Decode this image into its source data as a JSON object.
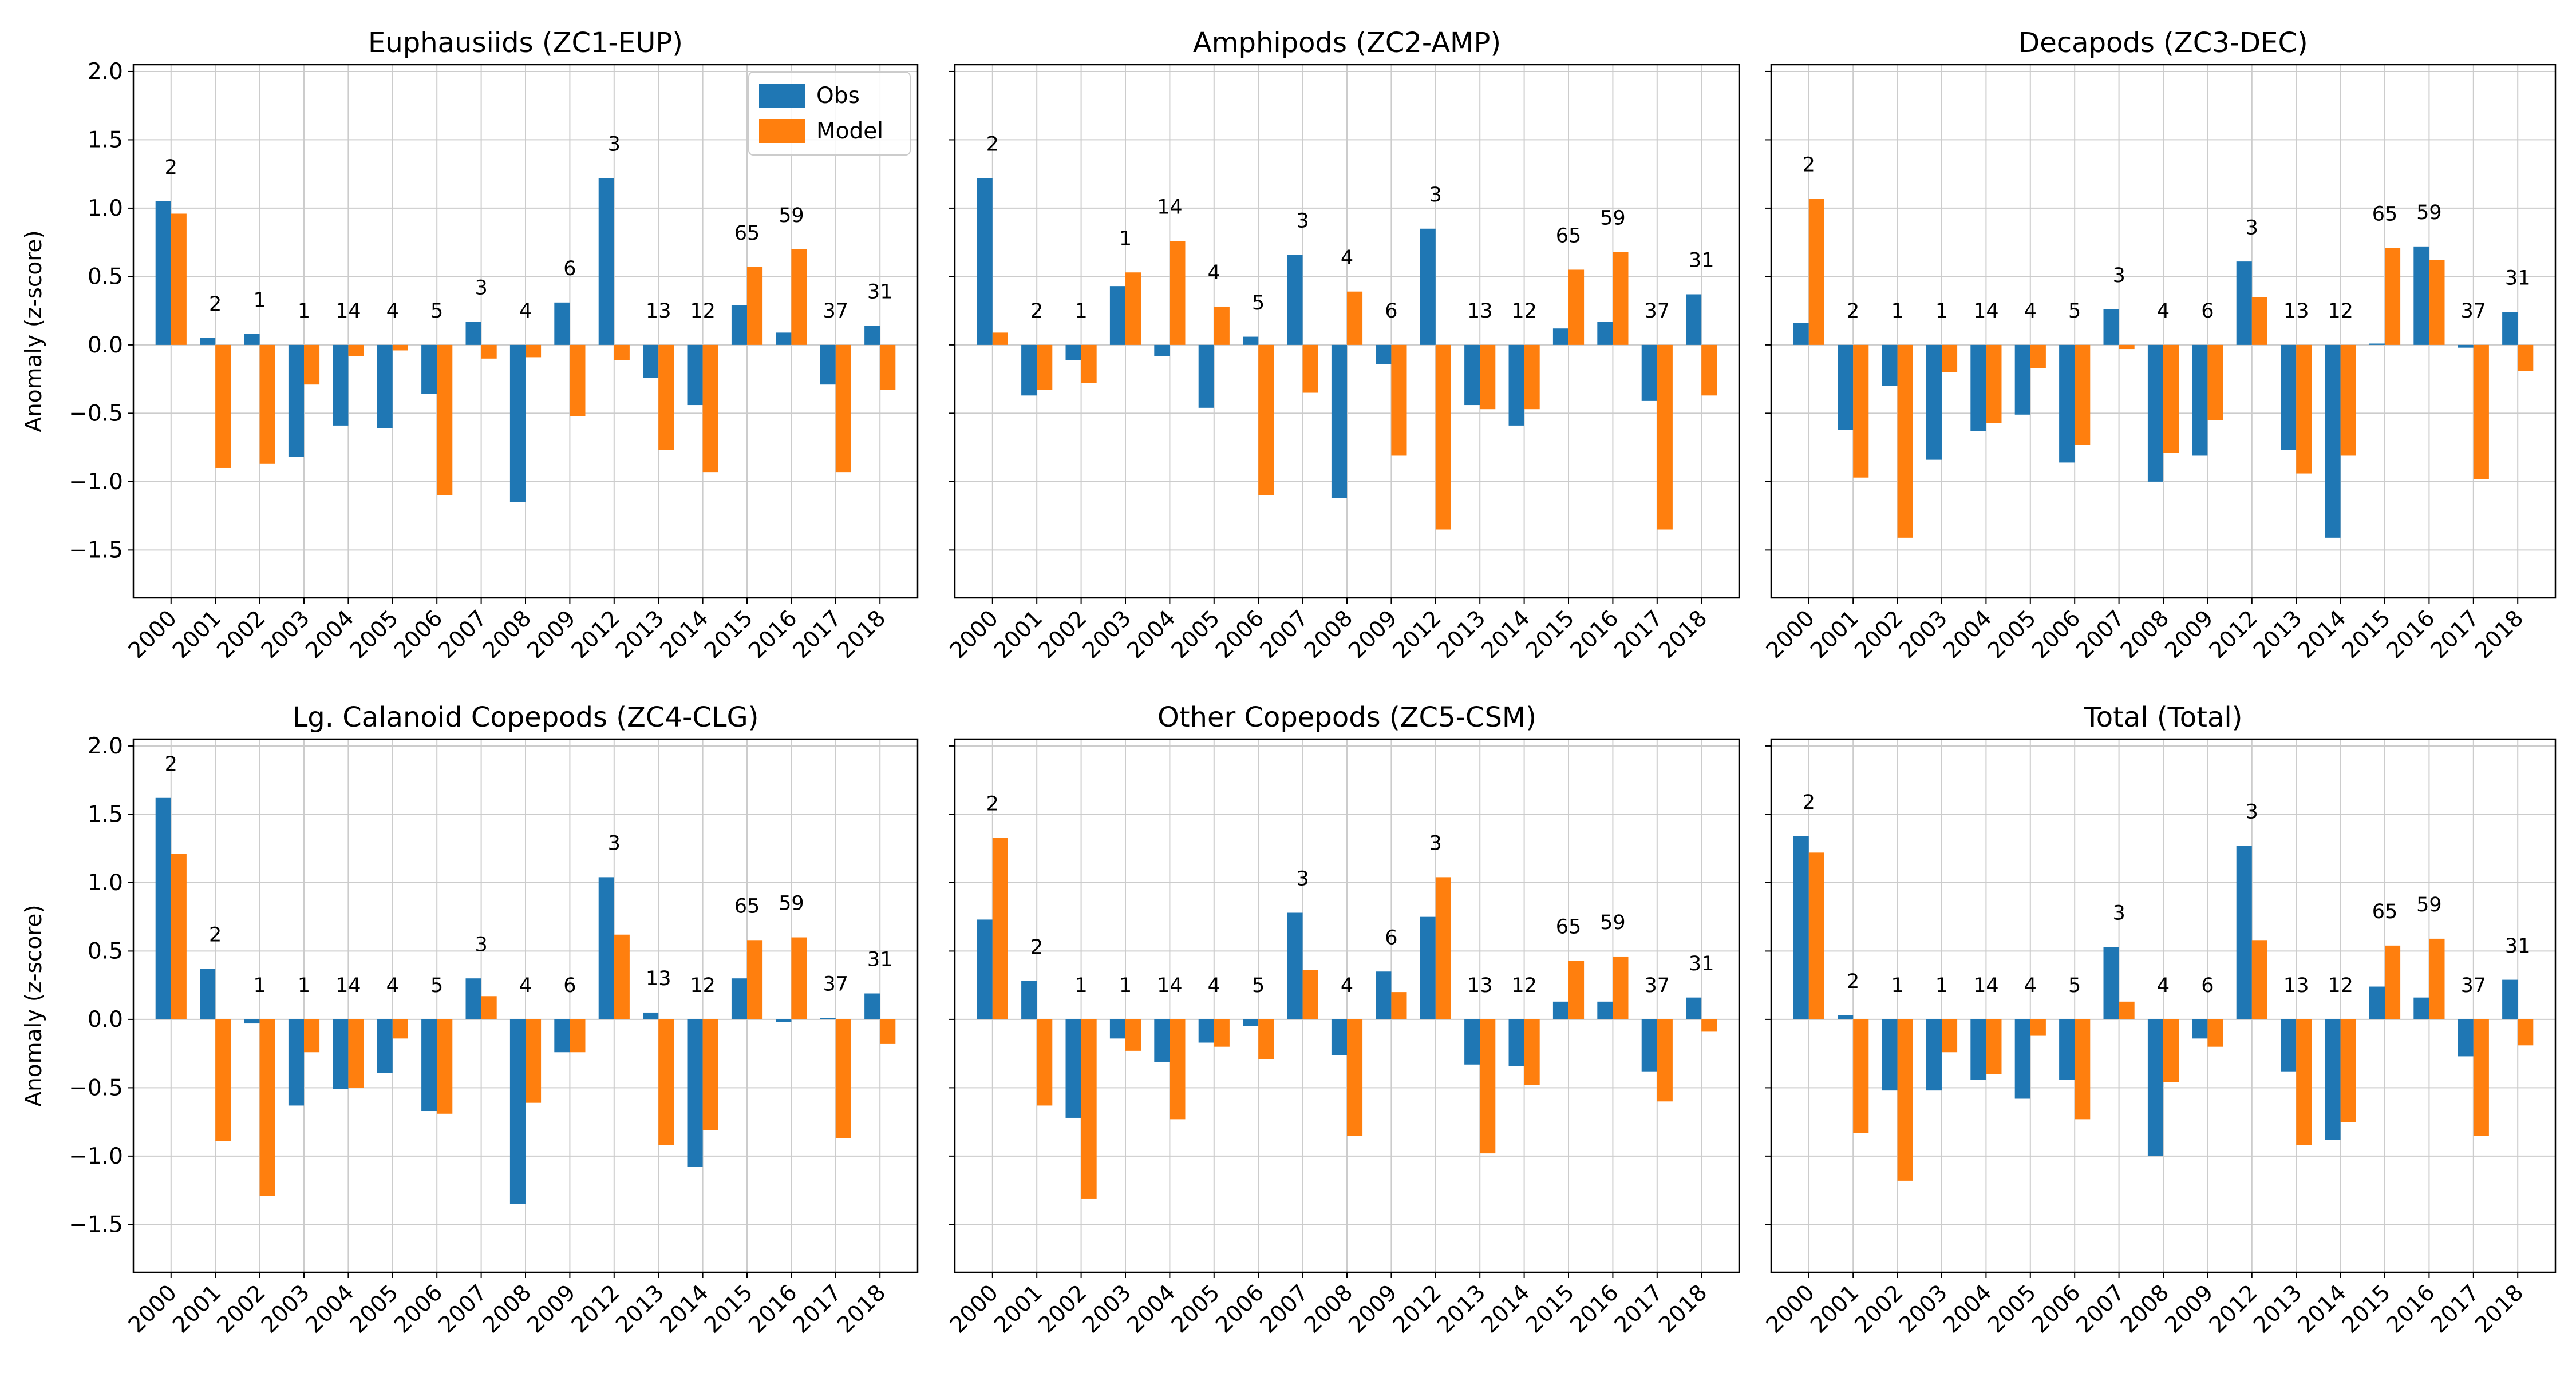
{
  "chart_data": {
    "type": "bar",
    "ylabel": "Anomaly (z-score)",
    "ylim": [
      -1.85,
      2.05
    ],
    "yticks": [
      -1.5,
      -1.0,
      -0.5,
      0.0,
      0.5,
      1.0,
      1.5,
      2.0
    ],
    "ytick_labels": [
      "−1.5",
      "−1.0",
      "−0.5",
      "0.0",
      "0.5",
      "1.0",
      "1.5",
      "2.0"
    ],
    "grid": true,
    "legend": {
      "position": "top-right",
      "entries": [
        "Obs",
        "Model"
      ]
    },
    "colors": {
      "Obs": "#1f77b4",
      "Model": "#ff7f0e"
    },
    "categories": [
      "2000",
      "2001",
      "2002",
      "2003",
      "2004",
      "2005",
      "2006",
      "2007",
      "2008",
      "2009",
      "2012",
      "2013",
      "2014",
      "2015",
      "2016",
      "2017",
      "2018"
    ],
    "panels": [
      {
        "title": "Euphausiids (ZC1-EUP)",
        "series": [
          {
            "name": "Obs",
            "values": [
              1.05,
              0.05,
              0.08,
              -0.82,
              -0.59,
              -0.61,
              -0.36,
              0.17,
              -1.15,
              0.31,
              1.22,
              -0.24,
              -0.44,
              0.29,
              0.09,
              -0.29,
              0.14
            ]
          },
          {
            "name": "Model",
            "values": [
              0.96,
              -0.9,
              -0.87,
              -0.29,
              -0.08,
              -0.04,
              -1.1,
              -0.1,
              -0.09,
              -0.52,
              -0.11,
              -0.77,
              -0.93,
              0.57,
              0.7,
              -0.93,
              -0.33
            ]
          }
        ],
        "annotations": [
          "2",
          "2",
          "1",
          "1",
          "14",
          "4",
          "5",
          "3",
          "4",
          "6",
          "3",
          "13",
          "12",
          "65",
          "59",
          "37",
          "31"
        ]
      },
      {
        "title": "Amphipods (ZC2-AMP)",
        "series": [
          {
            "name": "Obs",
            "values": [
              1.22,
              -0.37,
              -0.11,
              0.43,
              -0.08,
              -0.46,
              0.06,
              0.66,
              -1.12,
              -0.14,
              0.85,
              -0.44,
              -0.59,
              0.12,
              0.17,
              -0.41,
              0.37
            ]
          },
          {
            "name": "Model",
            "values": [
              0.09,
              -0.33,
              -0.28,
              0.53,
              0.76,
              0.28,
              -1.1,
              -0.35,
              0.39,
              -0.81,
              -1.35,
              -0.47,
              -0.47,
              0.55,
              0.68,
              -1.35,
              -0.37
            ]
          }
        ],
        "annotations": [
          "2",
          "2",
          "1",
          "1",
          "14",
          "4",
          "5",
          "3",
          "4",
          "6",
          "3",
          "13",
          "12",
          "65",
          "59",
          "37",
          "31"
        ]
      },
      {
        "title": "Decapods (ZC3-DEC)",
        "series": [
          {
            "name": "Obs",
            "values": [
              0.16,
              -0.62,
              -0.3,
              -0.84,
              -0.63,
              -0.51,
              -0.86,
              0.26,
              -1.0,
              -0.81,
              0.61,
              -0.77,
              -1.41,
              0.01,
              0.72,
              -0.02,
              0.24
            ]
          },
          {
            "name": "Model",
            "values": [
              1.07,
              -0.97,
              -1.41,
              -0.2,
              -0.57,
              -0.17,
              -0.73,
              -0.03,
              -0.79,
              -0.55,
              0.35,
              -0.94,
              -0.81,
              0.71,
              0.62,
              -0.98,
              -0.19
            ]
          }
        ],
        "annotations": [
          "2",
          "2",
          "1",
          "1",
          "14",
          "4",
          "5",
          "3",
          "4",
          "6",
          "3",
          "13",
          "12",
          "65",
          "59",
          "37",
          "31"
        ]
      },
      {
        "title": "Lg. Calanoid Copepods (ZC4-CLG)",
        "series": [
          {
            "name": "Obs",
            "values": [
              1.62,
              0.37,
              -0.03,
              -0.63,
              -0.51,
              -0.39,
              -0.67,
              0.3,
              -1.35,
              -0.24,
              1.04,
              0.05,
              -1.08,
              0.3,
              -0.02,
              0.01,
              0.19
            ]
          },
          {
            "name": "Model",
            "values": [
              1.21,
              -0.89,
              -1.29,
              -0.24,
              -0.5,
              -0.14,
              -0.69,
              0.17,
              -0.61,
              -0.24,
              0.62,
              -0.92,
              -0.81,
              0.58,
              0.6,
              -0.87,
              -0.18
            ]
          }
        ],
        "annotations": [
          "2",
          "2",
          "1",
          "1",
          "14",
          "4",
          "5",
          "3",
          "4",
          "6",
          "3",
          "13",
          "12",
          "65",
          "59",
          "37",
          "31"
        ]
      },
      {
        "title": "Other Copepods (ZC5-CSM)",
        "series": [
          {
            "name": "Obs",
            "values": [
              0.73,
              0.28,
              -0.72,
              -0.14,
              -0.31,
              -0.17,
              -0.05,
              0.78,
              -0.26,
              0.35,
              0.75,
              -0.33,
              -0.34,
              0.13,
              0.13,
              -0.38,
              0.16
            ]
          },
          {
            "name": "Model",
            "values": [
              1.33,
              -0.63,
              -1.31,
              -0.23,
              -0.73,
              -0.2,
              -0.29,
              0.36,
              -0.85,
              0.2,
              1.04,
              -0.98,
              -0.48,
              0.43,
              0.46,
              -0.6,
              -0.09
            ]
          }
        ],
        "annotations": [
          "2",
          "2",
          "1",
          "1",
          "14",
          "4",
          "5",
          "3",
          "4",
          "6",
          "3",
          "13",
          "12",
          "65",
          "59",
          "37",
          "31"
        ]
      },
      {
        "title": "Total (Total)",
        "series": [
          {
            "name": "Obs",
            "values": [
              1.34,
              0.03,
              -0.52,
              -0.52,
              -0.44,
              -0.58,
              -0.44,
              0.53,
              -1.0,
              -0.14,
              1.27,
              -0.38,
              -0.88,
              0.24,
              0.16,
              -0.27,
              0.29
            ]
          },
          {
            "name": "Model",
            "values": [
              1.22,
              -0.83,
              -1.18,
              -0.24,
              -0.4,
              -0.12,
              -0.73,
              0.13,
              -0.46,
              -0.2,
              0.58,
              -0.92,
              -0.75,
              0.54,
              0.59,
              -0.85,
              -0.19
            ]
          }
        ],
        "annotations": [
          "2",
          "2",
          "1",
          "1",
          "14",
          "4",
          "5",
          "3",
          "4",
          "6",
          "3",
          "13",
          "12",
          "65",
          "59",
          "37",
          "31"
        ]
      }
    ]
  }
}
